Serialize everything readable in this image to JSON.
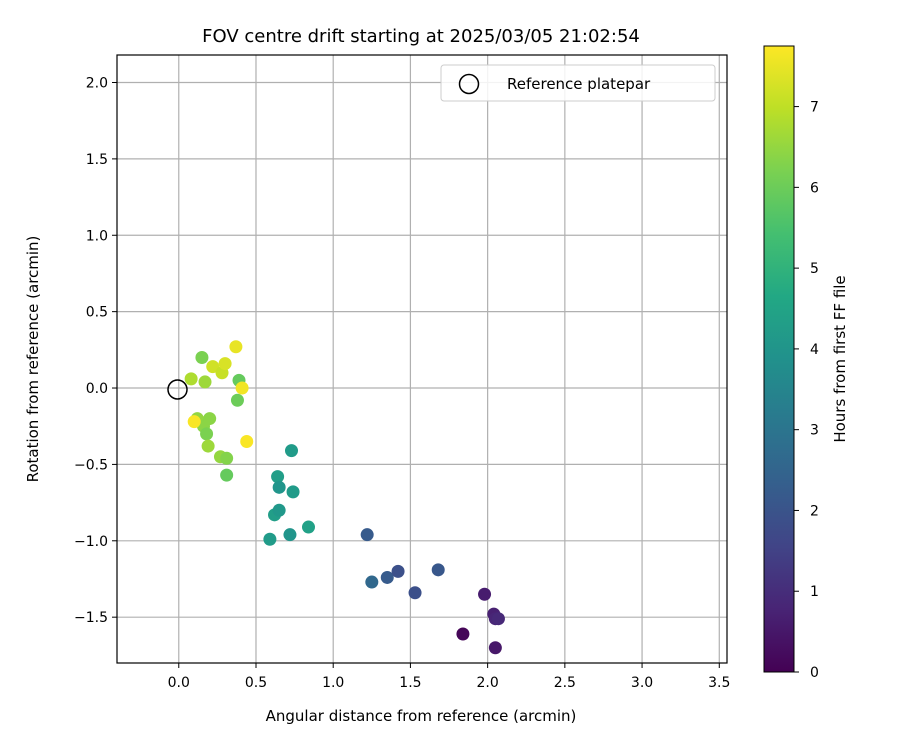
{
  "chart_data": {
    "type": "scatter",
    "title": "FOV centre drift starting at 2025/03/05 21:02:54",
    "xlabel": "Angular distance from reference (arcmin)",
    "ylabel": "Rotation from reference (arcmin)",
    "xlim": [
      -0.4,
      3.55
    ],
    "ylim": [
      -1.8,
      2.18
    ],
    "xticks": [
      0.0,
      0.5,
      1.0,
      1.5,
      2.0,
      2.5,
      3.0,
      3.5
    ],
    "yticks": [
      -1.5,
      -1.0,
      -0.5,
      0.0,
      0.5,
      1.0,
      1.5,
      2.0
    ],
    "xtick_labels": [
      "0.0",
      "0.5",
      "1.0",
      "1.5",
      "2.0",
      "2.5",
      "3.0",
      "3.5"
    ],
    "ytick_labels": [
      "−1.5",
      "−1.0",
      "−0.5",
      "0.0",
      "0.5",
      "1.0",
      "1.5",
      "2.0"
    ],
    "grid": true,
    "legend": {
      "location": "top-right",
      "entries": [
        "Reference platepar"
      ]
    },
    "reference_point": {
      "x": 0.0,
      "y": 0.0,
      "label": "Reference platepar"
    },
    "colorbar": {
      "label": "Hours from first FF file",
      "colormap": "viridis",
      "range": [
        0,
        7.75
      ],
      "ticks": [
        0,
        1,
        2,
        3,
        4,
        5,
        6,
        7
      ],
      "tick_labels": [
        "0",
        "1",
        "2",
        "3",
        "4",
        "5",
        "6",
        "7"
      ]
    },
    "series": [
      {
        "x": [
          1.84,
          1.98,
          2.04,
          2.05,
          2.07,
          2.05,
          1.22,
          1.25,
          1.35,
          1.42,
          1.53,
          1.68,
          0.59,
          0.62,
          0.64,
          0.65,
          0.65,
          0.72,
          0.73,
          0.74,
          0.84,
          0.12,
          0.15,
          0.16,
          0.18,
          0.19,
          0.2,
          0.27,
          0.31,
          0.31,
          0.38,
          0.39,
          0.08,
          0.17,
          0.22,
          0.28,
          0.3,
          0.37,
          0.41,
          0.44,
          0.1
        ],
        "y": [
          -1.61,
          -1.35,
          -1.48,
          -1.51,
          -1.51,
          -1.7,
          -0.96,
          -1.27,
          -1.24,
          -1.2,
          -1.34,
          -1.19,
          -0.99,
          -0.83,
          -0.58,
          -0.65,
          -0.8,
          -0.96,
          -0.41,
          -0.68,
          -0.91,
          -0.2,
          0.2,
          -0.25,
          -0.3,
          -0.38,
          -0.2,
          -0.45,
          -0.57,
          -0.46,
          -0.08,
          0.05,
          0.06,
          0.04,
          0.14,
          0.1,
          0.16,
          0.27,
          0.0,
          -0.35,
          -0.22
        ],
        "hours": [
          0.1,
          0.6,
          0.7,
          0.8,
          0.9,
          0.5,
          2.2,
          2.6,
          2.2,
          1.9,
          1.9,
          2.1,
          4.2,
          4.3,
          4.3,
          4.0,
          4.1,
          4.0,
          4.2,
          4.2,
          4.4,
          6.5,
          6.2,
          6.4,
          6.2,
          6.6,
          6.4,
          6.5,
          5.9,
          6.3,
          6.0,
          5.9,
          6.8,
          6.6,
          7.2,
          7.1,
          7.3,
          7.5,
          7.6,
          7.7,
          7.7
        ]
      }
    ]
  }
}
